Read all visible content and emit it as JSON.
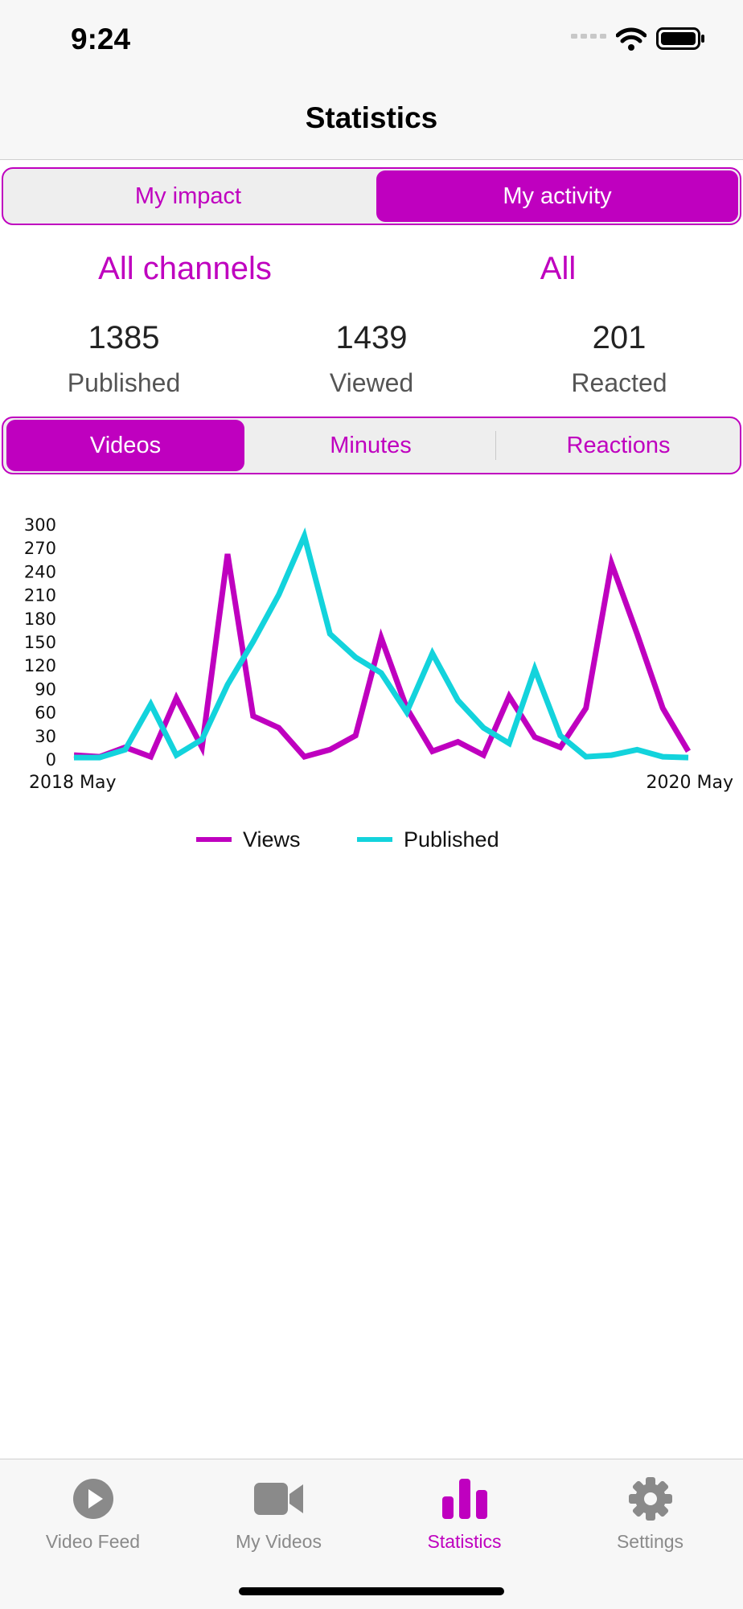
{
  "status_bar": {
    "time": "9:24"
  },
  "header": {
    "title": "Statistics"
  },
  "top_segment": {
    "items": [
      "My impact",
      "My activity"
    ],
    "selected": "My activity"
  },
  "filters": {
    "channel": "All channels",
    "type": "All"
  },
  "stats": [
    {
      "value": "1385",
      "label": "Published"
    },
    {
      "value": "1439",
      "label": "Viewed"
    },
    {
      "value": "201",
      "label": "Reacted"
    }
  ],
  "metric_segment": {
    "items": [
      "Videos",
      "Minutes",
      "Reactions"
    ],
    "selected": "Videos"
  },
  "colors": {
    "accent": "#bf00bf",
    "views": "#bf00bf",
    "published": "#13d3dc"
  },
  "chart_data": {
    "type": "line",
    "x_labels": [
      "2018 May",
      "2020 May"
    ],
    "ylim": [
      0,
      300
    ],
    "yticks": [
      0,
      30,
      60,
      90,
      120,
      150,
      180,
      210,
      240,
      270,
      300
    ],
    "legend_position": "bottom-center",
    "series": [
      {
        "name": "Views",
        "color": "#bf00bf",
        "values": [
          5,
          3,
          15,
          3,
          78,
          15,
          262,
          55,
          40,
          3,
          12,
          30,
          155,
          65,
          10,
          22,
          5,
          80,
          28,
          15,
          65,
          250,
          160,
          65,
          10
        ]
      },
      {
        "name": "Published",
        "color": "#13d3dc",
        "values": [
          2,
          2,
          12,
          70,
          5,
          25,
          95,
          150,
          210,
          285,
          160,
          130,
          110,
          60,
          135,
          75,
          40,
          20,
          115,
          30,
          3,
          5,
          12,
          3,
          2
        ]
      }
    ]
  },
  "tab_bar": {
    "items": [
      {
        "label": "Video Feed",
        "icon": "play-circle-icon"
      },
      {
        "label": "My Videos",
        "icon": "video-camera-icon"
      },
      {
        "label": "Statistics",
        "icon": "bar-chart-icon"
      },
      {
        "label": "Settings",
        "icon": "gear-icon"
      }
    ],
    "selected": "Statistics"
  }
}
